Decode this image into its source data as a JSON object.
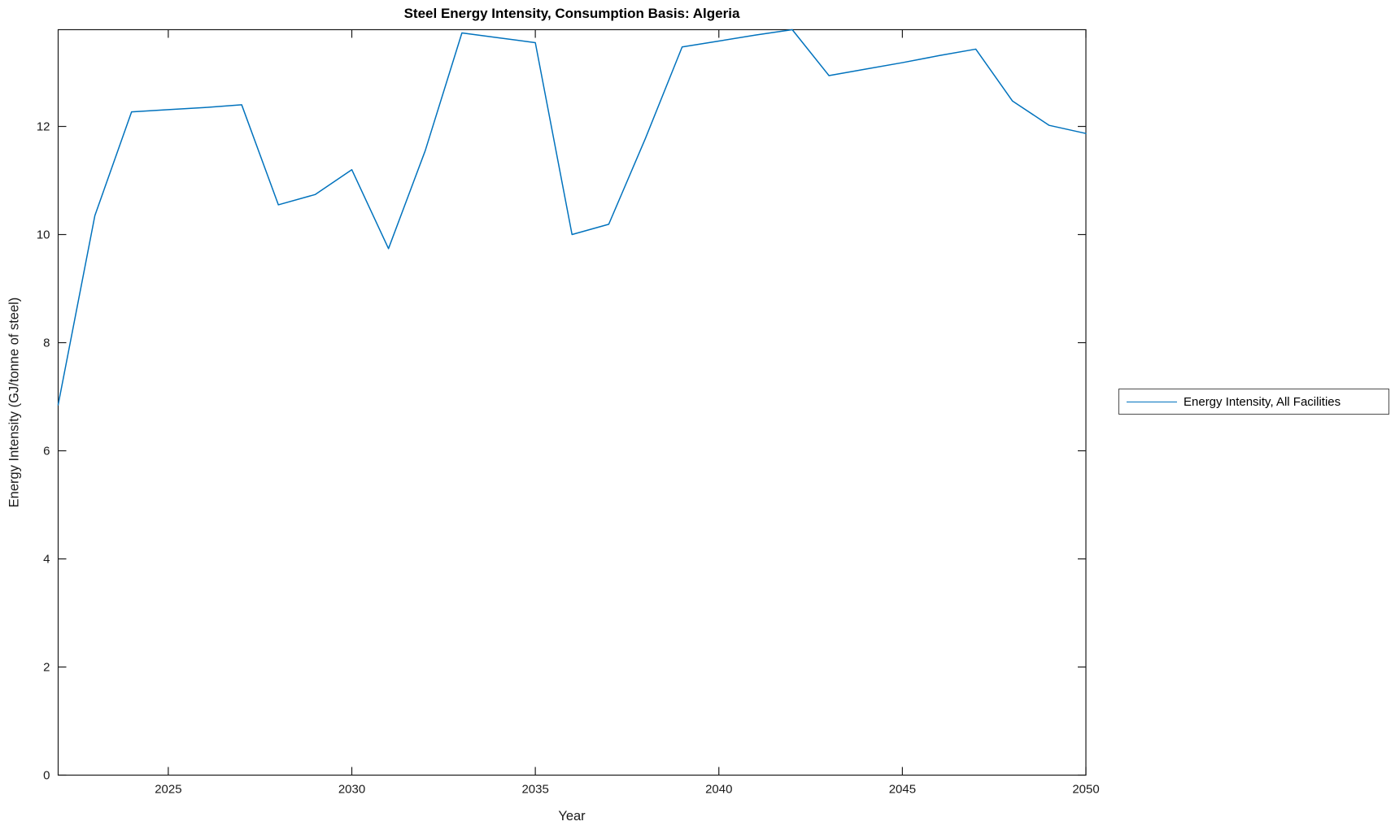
{
  "figure": {
    "title": "Steel Energy Intensity, Consumption Basis: Algeria",
    "xlabel": "Year",
    "ylabel": "Energy Intensity (GJ/tonne of steel)"
  },
  "legend": {
    "entries": [
      {
        "label": "Energy Intensity, All Facilities",
        "color": "#0072BD"
      }
    ]
  },
  "colors": {
    "line": "#0072BD",
    "axis": "#1a1a1a",
    "background": "#ffffff"
  },
  "chart_data": {
    "type": "line",
    "title": "Steel Energy Intensity, Consumption Basis: Algeria",
    "xlabel": "Year",
    "ylabel": "Energy Intensity (GJ/tonne of steel)",
    "grid": false,
    "legend_position": "right-outside",
    "xlim": [
      2022,
      2050
    ],
    "ylim": [
      0,
      13.79
    ],
    "xticks": [
      2025,
      2030,
      2035,
      2040,
      2045,
      2050
    ],
    "yticks": [
      0,
      2,
      4,
      6,
      8,
      10,
      12
    ],
    "x": [
      2022,
      2023,
      2024,
      2025,
      2026,
      2027,
      2028,
      2029,
      2030,
      2031,
      2032,
      2033,
      2034,
      2035,
      2036,
      2037,
      2038,
      2039,
      2040,
      2041,
      2042,
      2043,
      2044,
      2045,
      2046,
      2047,
      2048,
      2049,
      2050
    ],
    "series": [
      {
        "name": "Energy Intensity, All Facilities",
        "color": "#0072BD",
        "values": [
          6.85,
          10.35,
          12.27,
          12.31,
          12.35,
          12.4,
          10.55,
          10.74,
          11.2,
          9.74,
          11.55,
          13.73,
          13.64,
          13.55,
          10.0,
          10.19,
          11.78,
          13.47,
          13.58,
          13.69,
          13.79,
          12.94,
          13.06,
          13.18,
          13.31,
          13.43,
          12.47,
          12.02,
          11.87
        ]
      }
    ]
  }
}
